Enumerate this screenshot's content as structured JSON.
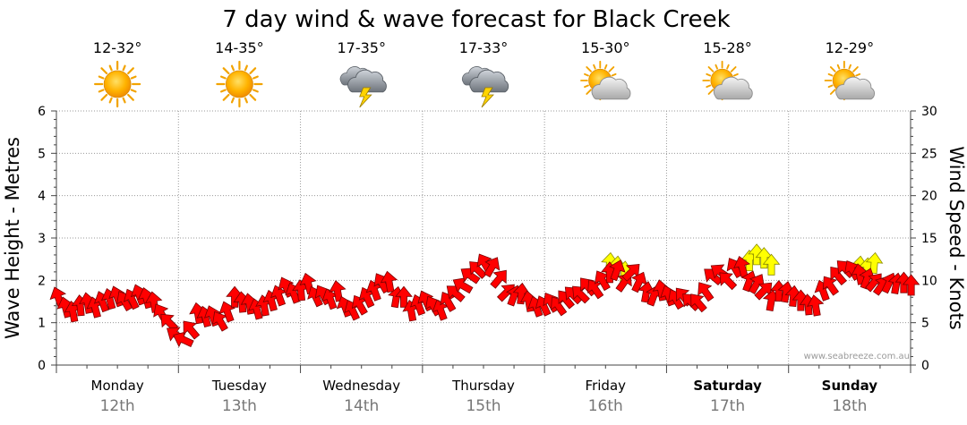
{
  "chart_data": {
    "type": "line",
    "title": "7 day wind & wave forecast for Black Creek",
    "ylabel_left": "Wave Height - Metres",
    "ylabel_right": "Wind Speed - Knots",
    "ylim_left": [
      0,
      6
    ],
    "ylim_right": [
      0,
      30
    ],
    "yticks_left": [
      "0",
      "1",
      "2",
      "3",
      "4",
      "5",
      "6"
    ],
    "yticks_right": [
      "0",
      "5",
      "10",
      "15",
      "20",
      "25",
      "30"
    ],
    "grid": true,
    "watermark": "www.seabreeze.com.au",
    "days": [
      {
        "name": "Monday",
        "date": "12th",
        "temp": "12-32°",
        "icon": "sun-icon",
        "bold": false
      },
      {
        "name": "Tuesday",
        "date": "13th",
        "temp": "14-35°",
        "icon": "sun-icon",
        "bold": false
      },
      {
        "name": "Wednesday",
        "date": "14th",
        "temp": "17-35°",
        "icon": "storm-cloud-icon",
        "bold": false
      },
      {
        "name": "Thursday",
        "date": "15th",
        "temp": "17-33°",
        "icon": "storm-cloud-icon",
        "bold": false
      },
      {
        "name": "Friday",
        "date": "16th",
        "temp": "15-30°",
        "icon": "partly-cloudy-icon",
        "bold": false
      },
      {
        "name": "Saturday",
        "date": "17th",
        "temp": "15-28°",
        "icon": "partly-cloudy-icon",
        "bold": true
      },
      {
        "name": "Sunday",
        "date": "18th",
        "temp": "12-29°",
        "icon": "partly-cloudy-icon",
        "bold": true
      }
    ],
    "series": [
      {
        "name": "Wind",
        "unit": "knots",
        "color": "#ff0000",
        "stroke": "#7a0000",
        "values": [
          8.0,
          6.8,
          6.3,
          7.0,
          7.3,
          6.8,
          7.5,
          7.8,
          8.1,
          7.6,
          7.8,
          8.3,
          7.9,
          7.4,
          6.1,
          5.1,
          3.6,
          3.0,
          4.2,
          6.1,
          5.7,
          5.8,
          5.2,
          6.3,
          8.0,
          7.4,
          7.2,
          6.6,
          7.0,
          7.6,
          8.2,
          9.2,
          8.5,
          8.8,
          9.6,
          8.1,
          8.3,
          7.8,
          8.7,
          6.9,
          6.5,
          7.1,
          8.0,
          8.8,
          9.7,
          9.8,
          8.0,
          8.0,
          6.4,
          7.1,
          7.6,
          7.0,
          6.5,
          7.5,
          8.5,
          9.4,
          10.6,
          11.3,
          12.0,
          11.6,
          10.2,
          8.6,
          8.2,
          8.4,
          7.5,
          6.9,
          7.0,
          7.4,
          7.0,
          7.8,
          8.3,
          8.4,
          9.3,
          9.0,
          10.0,
          10.9,
          11.2,
          9.8,
          11.0,
          9.8,
          8.6,
          8.2,
          8.8,
          8.2,
          7.8,
          8.1,
          7.5,
          7.4,
          8.7,
          10.5,
          11.0,
          10.0,
          11.5,
          11.6,
          9.9,
          9.6,
          8.8,
          7.6,
          8.7,
          8.6,
          8.1,
          7.6,
          7.1,
          7.0,
          8.8,
          9.4,
          10.6,
          11.4,
          11.2,
          10.7,
          10.2,
          9.8,
          9.4,
          9.7,
          9.6,
          9.7,
          9.4
        ],
        "direction_deg": [
          70,
          75,
          80,
          85,
          80,
          75,
          70,
          75,
          70,
          60,
          65,
          70,
          75,
          80,
          60,
          45,
          35,
          25,
          50,
          80,
          75,
          70,
          60,
          70,
          90,
          85,
          80,
          75,
          80,
          75,
          70,
          65,
          70,
          85,
          75,
          65,
          60,
          70,
          80,
          70,
          65,
          60,
          65,
          70,
          60,
          80,
          100,
          90,
          80,
          70,
          65,
          60,
          70,
          60,
          40,
          30,
          35,
          45,
          60,
          120,
          130,
          135,
          110,
          95,
          80,
          70,
          65,
          60,
          55,
          50,
          45,
          45,
          50,
          55,
          60,
          90,
          110,
          125,
          135,
          115,
          100,
          110,
          80,
          70,
          60,
          50,
          45,
          50,
          55,
          40,
          35,
          45,
          60,
          75,
          110,
          120,
          135,
          100,
          90,
          100,
          95,
          90,
          85,
          80,
          70,
          55,
          50,
          45,
          60,
          80,
          110,
          130,
          125,
          115,
          100,
          90,
          90
        ]
      },
      {
        "name": "Sea breeze",
        "unit": "knots",
        "color": "#ffff00",
        "stroke": "#8a8a00",
        "values": [
          null,
          null,
          null,
          null,
          null,
          null,
          null,
          null,
          null,
          null,
          null,
          null,
          null,
          null,
          null,
          null,
          null,
          null,
          null,
          null,
          null,
          null,
          null,
          null,
          null,
          null,
          null,
          null,
          null,
          null,
          null,
          null,
          null,
          null,
          null,
          null,
          null,
          null,
          null,
          null,
          null,
          null,
          null,
          null,
          null,
          null,
          null,
          null,
          null,
          null,
          null,
          null,
          null,
          null,
          null,
          null,
          null,
          null,
          null,
          null,
          null,
          null,
          null,
          null,
          null,
          null,
          null,
          null,
          null,
          null,
          null,
          null,
          null,
          null,
          null,
          12.0,
          11.6,
          11.0,
          null,
          null,
          null,
          null,
          null,
          null,
          null,
          null,
          null,
          null,
          null,
          null,
          null,
          null,
          null,
          null,
          12.3,
          13.0,
          12.6,
          11.8,
          null,
          null,
          null,
          null,
          null,
          null,
          null,
          null,
          null,
          null,
          null,
          11.6,
          11.4,
          12.0,
          null,
          null,
          null,
          null,
          null
        ],
        "direction_deg": [
          null,
          null,
          null,
          null,
          null,
          null,
          null,
          null,
          null,
          null,
          null,
          null,
          null,
          null,
          null,
          null,
          null,
          null,
          null,
          null,
          null,
          null,
          null,
          null,
          null,
          null,
          null,
          null,
          null,
          null,
          null,
          null,
          null,
          null,
          null,
          null,
          null,
          null,
          null,
          null,
          null,
          null,
          null,
          null,
          null,
          null,
          null,
          null,
          null,
          null,
          null,
          null,
          null,
          null,
          null,
          null,
          null,
          null,
          null,
          null,
          null,
          null,
          null,
          null,
          null,
          null,
          null,
          null,
          null,
          null,
          null,
          null,
          null,
          null,
          null,
          95,
          95,
          95,
          null,
          null,
          null,
          null,
          null,
          null,
          null,
          null,
          null,
          null,
          null,
          null,
          null,
          null,
          null,
          null,
          90,
          90,
          90,
          90,
          null,
          null,
          null,
          null,
          null,
          null,
          null,
          null,
          null,
          null,
          null,
          95,
          95,
          95,
          null,
          null,
          null,
          null,
          null
        ]
      }
    ]
  }
}
